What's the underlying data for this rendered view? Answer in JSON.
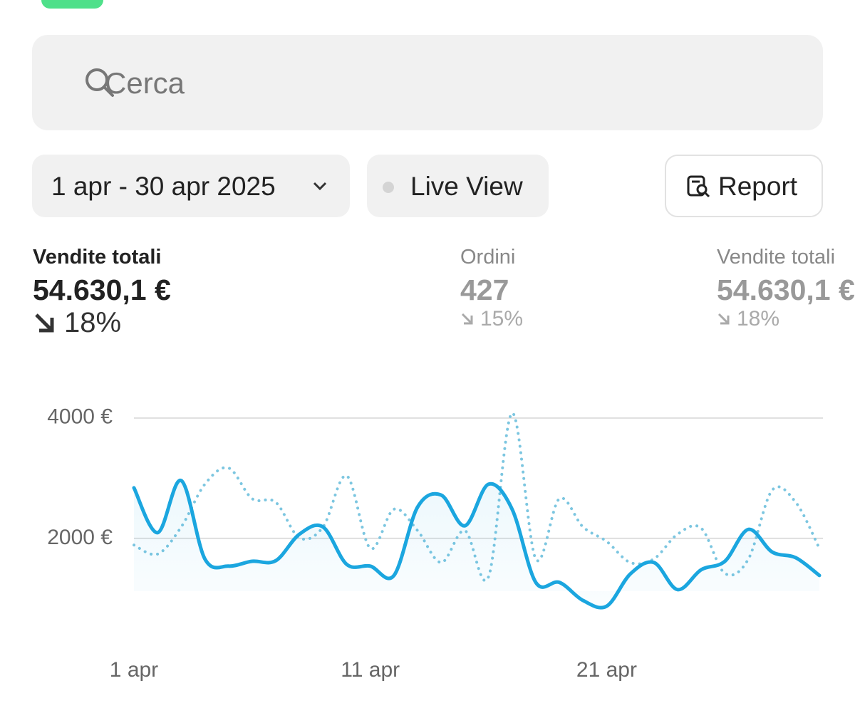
{
  "search": {
    "placeholder": "Cerca"
  },
  "toolbar": {
    "date_range": "1 apr - 30 apr 2025",
    "live": "Live View",
    "report": "Report"
  },
  "metrics": [
    {
      "title": "Vendite totali",
      "value": "54.630,1 €",
      "change": "18%"
    },
    {
      "title": "Ordini",
      "value": "427",
      "change": "15%"
    },
    {
      "title": "Vendite totali",
      "value": "54.630,1 €",
      "change": "18%"
    }
  ],
  "chart_data": {
    "type": "line",
    "categories": [
      "1 apr",
      null,
      null,
      null,
      null,
      null,
      null,
      null,
      null,
      null,
      "11 apr",
      null,
      null,
      null,
      null,
      null,
      null,
      null,
      null,
      null,
      "21 apr",
      null,
      null,
      null,
      null,
      null,
      null,
      null,
      null,
      null
    ],
    "series": [
      {
        "color": "#1ba6df",
        "dash": "solid",
        "fill": true,
        "values": [
          2840,
          2095,
          2960,
          1660,
          1540,
          1620,
          1630,
          2070,
          2190,
          1570,
          1540,
          1385,
          2520,
          2720,
          2210,
          2900,
          2485,
          1270,
          1270,
          970,
          875,
          1410,
          1600,
          1150,
          1480,
          1620,
          2150,
          1775,
          1680,
          1385
        ]
      },
      {
        "color": "#7cc6e0",
        "dash": "dotted",
        "fill": false,
        "values": [
          1890,
          1740,
          2190,
          2900,
          3170,
          2660,
          2600,
          2010,
          2190,
          3040,
          1835,
          2485,
          2130,
          1600,
          2130,
          1360,
          4080,
          1660,
          2660,
          2190,
          1950,
          1600,
          1660,
          2070,
          2170,
          1420,
          1660,
          2800,
          2600,
          1835
        ]
      }
    ],
    "ylim": [
      0,
      4400
    ],
    "yticks": [
      {
        "value": 2000,
        "label": "2000 €"
      },
      {
        "value": 4000,
        "label": "4000 €"
      }
    ],
    "grid": true
  }
}
